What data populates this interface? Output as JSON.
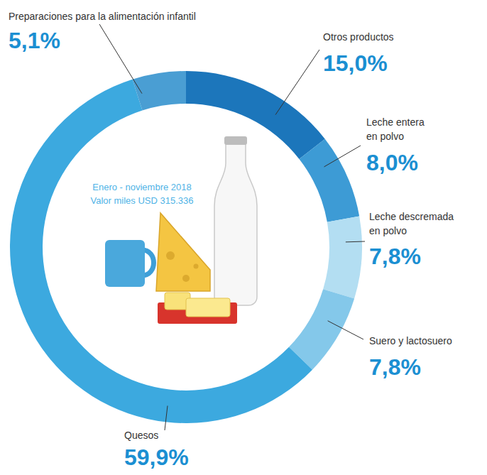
{
  "chart_data": {
    "type": "donut",
    "annotations": [
      "Enero - noviembre 2018",
      "Valor miles USD 315.336"
    ],
    "categories": [
      "Otros productos",
      "Leche entera en polvo",
      "Leche descremada en polvo",
      "Suero y lactosuero",
      "Quesos",
      "Preparaciones para la alimentación infantil"
    ],
    "values": [
      15.0,
      8.0,
      7.8,
      7.8,
      59.9,
      5.1
    ],
    "value_labels": [
      "15,0%",
      "8,0%",
      "7,8%",
      "7,8%",
      "59,9%",
      "5,1%"
    ],
    "colors": [
      "#1c76bb",
      "#3d9bd5",
      "#b3def2",
      "#84c8ea",
      "#3ca9df",
      "#4a9ed3"
    ],
    "data_labels": true
  }
}
